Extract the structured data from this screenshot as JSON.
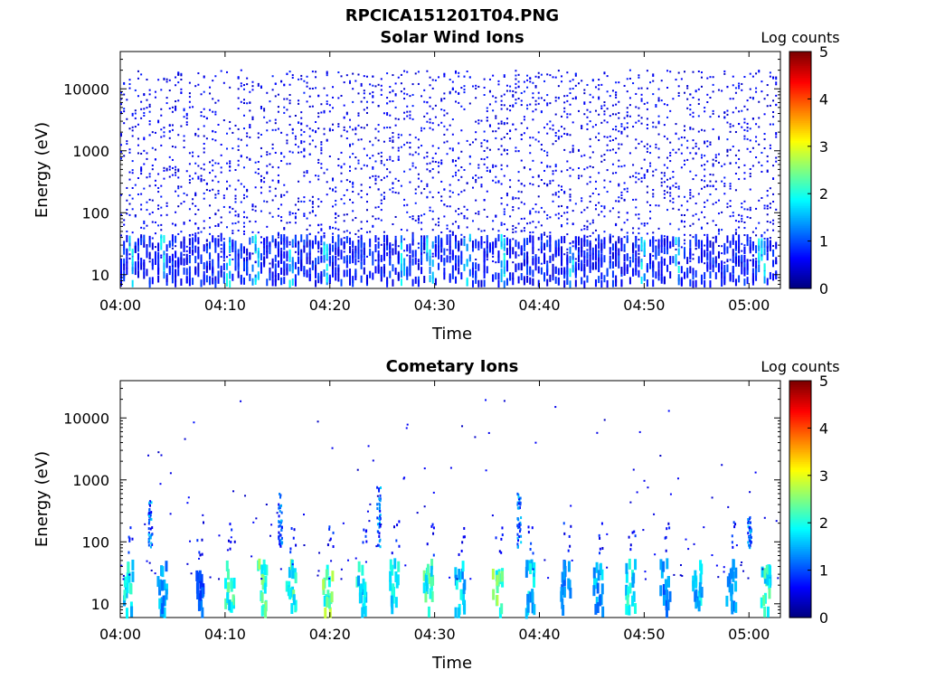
{
  "figure": {
    "title": "RPCICA151201T04.PNG",
    "colormap": "jet"
  },
  "chart_data": [
    {
      "type": "heatmap",
      "title": "Solar Wind Ions",
      "xlabel": "Time",
      "ylabel": "Energy (eV)",
      "x_ticks": [
        "04:00",
        "04:10",
        "04:20",
        "04:30",
        "04:40",
        "04:50",
        "05:00"
      ],
      "y_ticks": [
        "10",
        "100",
        "1000",
        "10000"
      ],
      "xlim": [
        "04:00",
        "05:03"
      ],
      "ylim": [
        6,
        40000
      ],
      "y_scale": "log",
      "grid": false,
      "colorbar": {
        "label": "Log counts",
        "ticks": [
          "0",
          "1",
          "2",
          "3",
          "4",
          "5"
        ],
        "range": [
          0,
          5
        ]
      },
      "pattern": {
        "description": "sparse scattered low counts (mostly ~0-1 log counts) across 10 eV to 20 keV; denser near 10-40 eV with occasional ~1-2 log counts",
        "sweep_period_min": 1.7,
        "hot_spots_min": [
          0.9,
          3.9,
          10.2,
          12.8,
          16.2,
          19.5,
          26.9,
          29.4,
          33.0,
          36.4,
          43.0,
          49.8,
          53.1,
          61.2
        ]
      }
    },
    {
      "type": "heatmap",
      "title": "Cometary Ions",
      "xlabel": "Time",
      "ylabel": "Energy (eV)",
      "x_ticks": [
        "04:00",
        "04:10",
        "04:20",
        "04:30",
        "04:40",
        "04:50",
        "05:00"
      ],
      "y_ticks": [
        "10",
        "100",
        "1000",
        "10000"
      ],
      "xlim": [
        "04:00",
        "05:03"
      ],
      "ylim": [
        6,
        40000
      ],
      "y_scale": "log",
      "grid": false,
      "colorbar": {
        "label": "Log counts",
        "ticks": [
          "0",
          "1",
          "2",
          "3",
          "4",
          "5"
        ],
        "range": [
          0,
          5
        ]
      },
      "pattern": {
        "description": "periodic bursts every ~3.3 min of cometary ions in ~7-40 eV peaking ~2-3 log counts (green/yellow); occasional tails to a few hundred eV; few scattered points up to ~20 keV",
        "burst_centers_min": [
          0.7,
          3.9,
          7.4,
          10.3,
          13.4,
          16.2,
          19.7,
          22.9,
          26.0,
          29.3,
          32.3,
          35.9,
          39.0,
          42.4,
          45.5,
          48.6,
          51.9,
          55.0,
          58.2,
          61.5
        ],
        "burst_peak_log_counts": [
          2.2,
          1.8,
          1.3,
          2.5,
          2.8,
          2.6,
          2.9,
          2.3,
          2.1,
          2.6,
          2.0,
          2.9,
          2.0,
          1.5,
          1.8,
          2.2,
          1.6,
          2.0,
          1.7,
          2.4
        ],
        "tail_events_min": [
          {
            "t": 2.8,
            "emax": 450
          },
          {
            "t": 15.2,
            "emax": 600
          },
          {
            "t": 24.6,
            "emax": 800
          },
          {
            "t": 38.0,
            "emax": 600
          },
          {
            "t": 60.0,
            "emax": 250
          }
        ]
      }
    }
  ]
}
